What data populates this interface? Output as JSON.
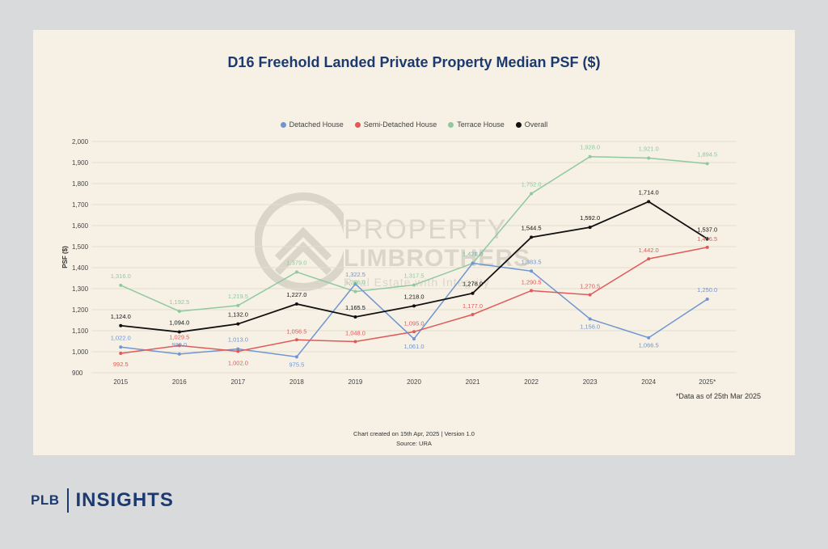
{
  "chart_data": {
    "type": "line",
    "title": "D16 Freehold Landed Private Property Median PSF ($)",
    "ylabel": "PSF ($)",
    "xlabel": "",
    "ylim": [
      900,
      2000
    ],
    "yticks": [
      "900",
      "1,000",
      "1,100",
      "1,200",
      "1,300",
      "1,400",
      "1,500",
      "1,600",
      "1,700",
      "1,800",
      "1,900",
      "2,000"
    ],
    "ytick_values": [
      900,
      1000,
      1100,
      1200,
      1300,
      1400,
      1500,
      1600,
      1700,
      1800,
      1900,
      2000
    ],
    "categories": [
      "2015",
      "2016",
      "2017",
      "2018",
      "2019",
      "2020",
      "2021",
      "2022",
      "2023",
      "2024",
      "2025*"
    ],
    "grid": true,
    "legend_position": "top-center",
    "series": [
      {
        "name": "Detached House",
        "color": "#6f95d2",
        "values": [
          1022.0,
          989.0,
          1013.0,
          975.5,
          1322.5,
          1061.0,
          1421.0,
          1383.5,
          1156.0,
          1066.5,
          1250.0
        ],
        "labels": [
          "1,022.0",
          "989.0",
          "1,013.0",
          "975.5",
          "1,322.5",
          "1,061.0",
          "1,421.0",
          "1,383.5",
          "1,156.0",
          "1,066.5",
          "1,250.0"
        ]
      },
      {
        "name": "Semi-Detached House",
        "color": "#e05a5a",
        "values": [
          992.5,
          1029.5,
          1002.0,
          1056.5,
          1048.0,
          1095.0,
          1177.0,
          1290.5,
          1270.5,
          1442.0,
          1496.5
        ],
        "labels": [
          "992.5",
          "1,029.5",
          "1,002.0",
          "1,056.5",
          "1,048.0",
          "1,095.0",
          "1,177.0",
          "1,290.5",
          "1,270.5",
          "1,442.0",
          "1,496.5"
        ]
      },
      {
        "name": "Terrace House",
        "color": "#8fc9a0",
        "values": [
          1316.0,
          1192.5,
          1219.5,
          1379.0,
          1286.0,
          1317.5,
          1420.5,
          1752.0,
          1928.0,
          1921.0,
          1894.5
        ],
        "labels": [
          "1,316.0",
          "1,192.5",
          "1,219.5",
          "1,379.0",
          "1,286.0",
          "1,317.5",
          "1,420.5",
          "1,752.0",
          "1,928.0",
          "1,921.0",
          "1,894.5"
        ]
      },
      {
        "name": "Overall",
        "color": "#111111",
        "values": [
          1124.0,
          1094.0,
          1132.0,
          1227.0,
          1165.5,
          1218.0,
          1278.0,
          1544.5,
          1592.0,
          1714.0,
          1537.0
        ],
        "labels": [
          "1,124.0",
          "1,094.0",
          "1,132.0",
          "1,227.0",
          "1,165.5",
          "1,218.0",
          "1,278.0",
          "1,544.5",
          "1,592.0",
          "1,714.0",
          "1,537.0"
        ]
      }
    ],
    "annotation": "*Data as of 25th Mar 2025"
  },
  "footer": {
    "created": "Chart created on 15th Apr, 2025 | Version 1.0",
    "source": "Source: URA"
  },
  "watermark": {
    "line1": "PROPERTY",
    "line2": "LIMBROTHERS",
    "line3": "Real Estate with Integrity"
  },
  "brand": {
    "plb": "PLB",
    "insights": "INSIGHTS"
  }
}
